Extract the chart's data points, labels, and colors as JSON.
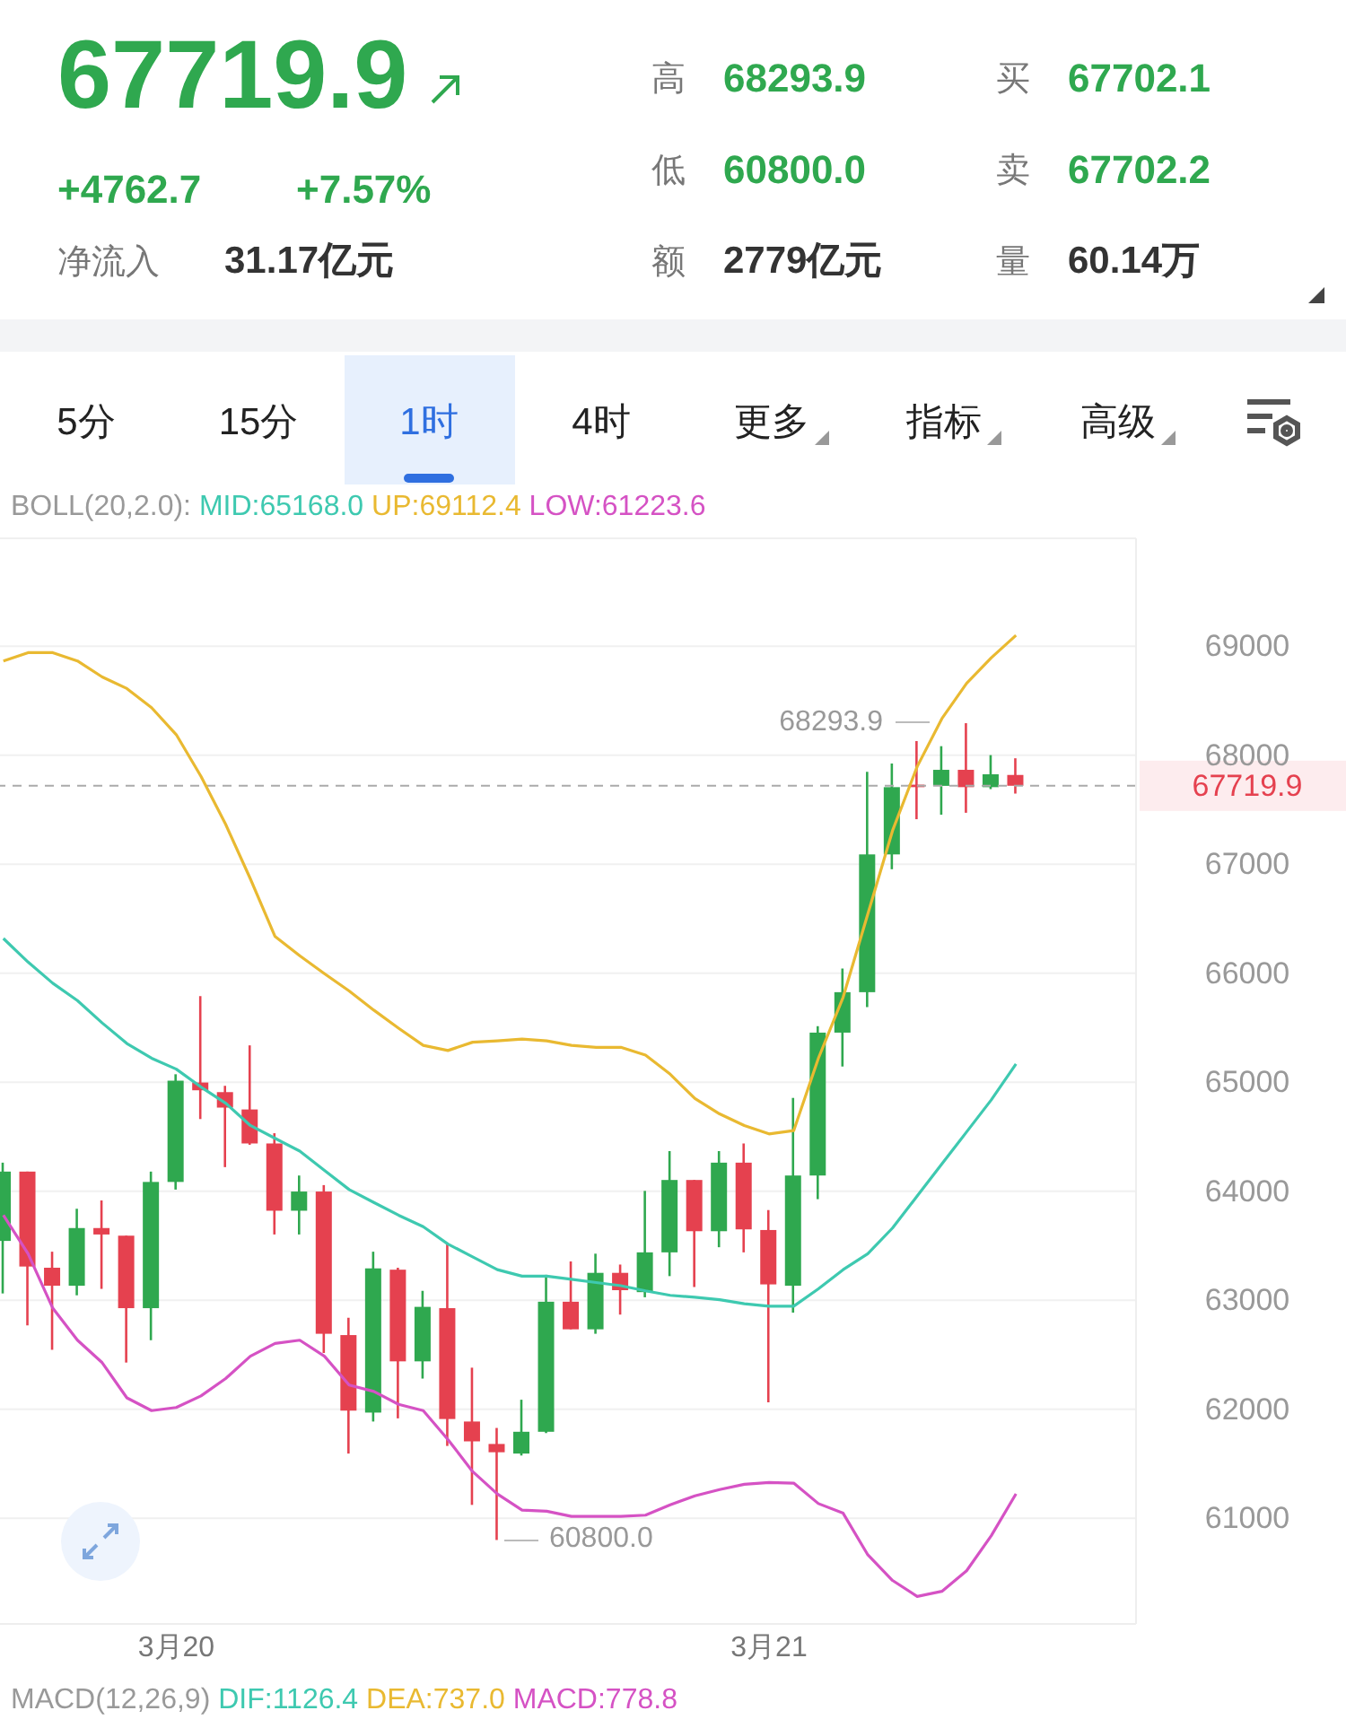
{
  "chart_data": {
    "type": "candlestick",
    "title": "67719.9",
    "categories": [
      null,
      null,
      null,
      null,
      null,
      null,
      null,
      "3月20",
      null,
      null,
      null,
      null,
      null,
      null,
      null,
      null,
      null,
      null,
      null,
      null,
      null,
      null,
      null,
      null,
      null,
      null,
      null,
      null,
      null,
      null,
      null,
      "3月21",
      null,
      null,
      null,
      null,
      null,
      null,
      null,
      null,
      null,
      null
    ],
    "ohlc": [
      [
        63544,
        64262,
        63062,
        64180
      ],
      [
        64180,
        64180,
        62769,
        63309
      ],
      [
        63298,
        63445,
        62545,
        63133
      ],
      [
        63133,
        63839,
        63045,
        63662
      ],
      [
        63662,
        63915,
        63104,
        63603
      ],
      [
        63592,
        63592,
        62428,
        62927
      ],
      [
        62927,
        64180,
        62633,
        64085
      ],
      [
        64085,
        65073,
        64015,
        65014
      ],
      [
        64997,
        65790,
        64662,
        64926
      ],
      [
        64909,
        64967,
        64221,
        64767
      ],
      [
        64750,
        65338,
        64426,
        64438
      ],
      [
        64438,
        64532,
        63603,
        63821
      ],
      [
        63821,
        64144,
        63603,
        63997
      ],
      [
        63997,
        64056,
        62516,
        62692
      ],
      [
        62680,
        62839,
        61593,
        61987
      ],
      [
        61969,
        63445,
        61887,
        63292
      ],
      [
        63280,
        63298,
        61916,
        62439
      ],
      [
        62439,
        63086,
        62281,
        62939
      ],
      [
        62927,
        63515,
        61663,
        61910
      ],
      [
        61887,
        62381,
        61122,
        61705
      ],
      [
        61681,
        61828,
        60800,
        61605
      ],
      [
        61593,
        62087,
        61575,
        61793
      ],
      [
        61793,
        63233,
        61781,
        62986
      ],
      [
        62986,
        63356,
        62733,
        62733
      ],
      [
        62733,
        63427,
        62692,
        63251
      ],
      [
        63251,
        63327,
        62868,
        63092
      ],
      [
        63074,
        64003,
        63027,
        63439
      ],
      [
        63439,
        64368,
        63221,
        64103
      ],
      [
        64103,
        64103,
        63121,
        63633
      ],
      [
        63633,
        64368,
        63486,
        64262
      ],
      [
        64262,
        64438,
        63439,
        63650
      ],
      [
        63644,
        63827,
        62063,
        63145
      ],
      [
        63133,
        64856,
        62886,
        64144
      ],
      [
        64144,
        65514,
        63927,
        65455
      ],
      [
        65455,
        66043,
        65144,
        65826
      ],
      [
        65826,
        67848,
        65690,
        67090
      ],
      [
        67090,
        67924,
        66954,
        67707
      ],
      [
        67730,
        68130,
        67413,
        67707
      ],
      [
        67719,
        68083,
        67454,
        67866
      ],
      [
        67866,
        68293.9,
        67472,
        67707
      ],
      [
        67707,
        68001,
        67689,
        67825
      ],
      [
        67819,
        67972,
        67648,
        67719.9
      ]
    ],
    "colors": [
      "#2fa84f",
      "#e5414f",
      "#e5414f",
      "#2fa84f",
      "#e5414f",
      "#e5414f",
      "#2fa84f",
      "#2fa84f",
      "#e5414f",
      "#e5414f",
      "#e5414f",
      "#e5414f",
      "#2fa84f",
      "#e5414f",
      "#e5414f",
      "#2fa84f",
      "#e5414f",
      "#2fa84f",
      "#e5414f",
      "#e5414f",
      "#e5414f",
      "#2fa84f",
      "#2fa84f",
      "#e5414f",
      "#2fa84f",
      "#e5414f",
      "#2fa84f",
      "#2fa84f",
      "#e5414f",
      "#2fa84f",
      "#e5414f",
      "#e5414f",
      "#2fa84f",
      "#2fa84f",
      "#2fa84f",
      "#2fa84f",
      "#2fa84f",
      "#e5414f",
      "#2fa84f",
      "#e5414f",
      "#2fa84f",
      "#e5414f"
    ],
    "series": [
      {
        "name": "MID:65168.0",
        "type": "line",
        "color": "#3ec9b0",
        "values": [
          66319,
          66102,
          65908,
          65749,
          65544,
          65355,
          65220,
          65120,
          64956,
          64808,
          64603,
          64485,
          64368,
          64191,
          64015,
          63897,
          63780,
          63674,
          63515,
          63398,
          63280,
          63221,
          63221,
          63192,
          63162,
          63133,
          63086,
          63045,
          63027,
          63004,
          62968,
          62945,
          62945,
          63104,
          63280,
          63427,
          63662,
          63956,
          64250,
          64544,
          64838,
          65168
        ]
      },
      {
        "name": "UP:69112.4",
        "type": "line",
        "color": "#e9b931",
        "values": [
          68865,
          68941,
          68941,
          68865,
          68718,
          68612,
          68436,
          68189,
          67807,
          67366,
          66866,
          66337,
          66161,
          65996,
          65837,
          65661,
          65496,
          65338,
          65291,
          65367,
          65379,
          65396,
          65379,
          65338,
          65320,
          65320,
          65249,
          65073,
          64850,
          64709,
          64603,
          64526,
          64556,
          65220,
          65779,
          66543,
          67307,
          67896,
          68336,
          68659,
          68894,
          69100
        ]
      },
      {
        "name": "LOW:61223.6",
        "type": "line",
        "color": "#d552c4",
        "values": [
          63780,
          63427,
          62927,
          62633,
          62427,
          62104,
          61987,
          62016,
          62122,
          62281,
          62486,
          62604,
          62633,
          62486,
          62222,
          62163,
          62045,
          61987,
          61722,
          61428,
          61222,
          61075,
          61064,
          61017,
          61017,
          61017,
          61028,
          61122,
          61205,
          61263,
          61311,
          61328,
          61322,
          61134,
          61046,
          60664,
          60429,
          60282,
          60329,
          60518,
          60840,
          61224
        ]
      }
    ],
    "legend_title": "BOLL(20,2.0):",
    "legend": "top",
    "ylim": [
      60030,
      69990
    ],
    "yticks": [
      61000,
      62000,
      63000,
      64000,
      65000,
      66000,
      67000,
      68000,
      69000
    ],
    "grid": "y",
    "marker": "none",
    "line_style": "solid",
    "ref_lines": [
      {
        "axis": "y",
        "value": 67719.9,
        "label": "67719.9",
        "line_style": "dashed"
      }
    ],
    "annotations": [
      "+4762.7",
      "+7.57%",
      "净流入",
      "31.17亿元",
      "高",
      "68293.9",
      "低",
      "60800.0",
      "额",
      "2779亿元",
      "买",
      "67702.1",
      "卖",
      "67702.2",
      "量",
      "60.14万",
      "5分",
      "15分",
      "1时",
      "4时",
      "更多",
      "指标",
      "高级",
      "MACD(12,26,9)",
      "DIF:1126.4",
      "DEA:737.0",
      "MACD:778.8",
      "68293.9",
      "60800.0"
    ]
  }
}
